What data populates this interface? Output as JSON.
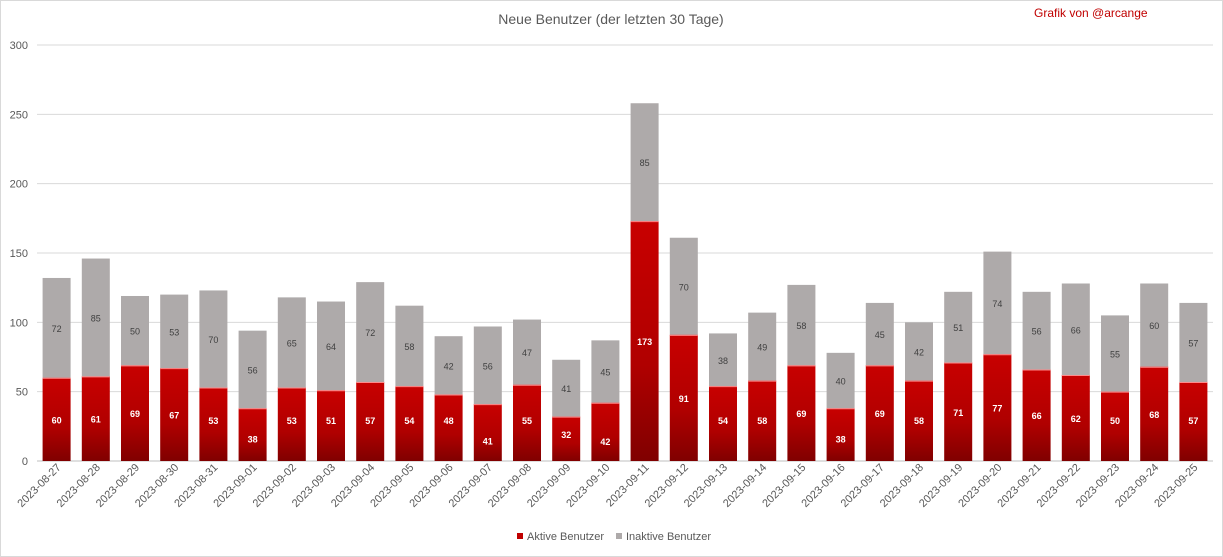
{
  "chart_data": {
    "type": "bar",
    "stacked": true,
    "title": "Neue Benutzer (der letzten 30 Tage)",
    "credit": "Grafik von @arcange",
    "xlabel": "",
    "ylabel": "",
    "ylim": [
      0,
      300
    ],
    "yticks": [
      0,
      50,
      100,
      150,
      200,
      250,
      300
    ],
    "grid": true,
    "legend_position": "bottom",
    "categories": [
      "2023-08-27",
      "2023-08-28",
      "2023-08-29",
      "2023-08-30",
      "2023-08-31",
      "2023-09-01",
      "2023-09-02",
      "2023-09-03",
      "2023-09-04",
      "2023-09-05",
      "2023-09-06",
      "2023-09-07",
      "2023-09-08",
      "2023-09-09",
      "2023-09-10",
      "2023-09-11",
      "2023-09-12",
      "2023-09-13",
      "2023-09-14",
      "2023-09-15",
      "2023-09-16",
      "2023-09-17",
      "2023-09-18",
      "2023-09-19",
      "2023-09-20",
      "2023-09-21",
      "2023-09-22",
      "2023-09-23",
      "2023-09-24",
      "2023-09-25"
    ],
    "series": [
      {
        "name": "Aktive Benutzer",
        "color": "#c00000",
        "values": [
          60,
          61,
          69,
          67,
          53,
          38,
          53,
          51,
          57,
          54,
          48,
          41,
          55,
          32,
          42,
          173,
          91,
          54,
          58,
          69,
          38,
          69,
          58,
          71,
          77,
          66,
          62,
          50,
          68,
          57
        ]
      },
      {
        "name": "Inaktive Benutzer",
        "color": "#aeaaaa",
        "values": [
          72,
          85,
          50,
          53,
          70,
          56,
          65,
          64,
          72,
          58,
          42,
          56,
          47,
          41,
          45,
          85,
          70,
          38,
          49,
          58,
          40,
          45,
          42,
          51,
          74,
          56,
          66,
          55,
          60,
          57
        ]
      }
    ]
  }
}
